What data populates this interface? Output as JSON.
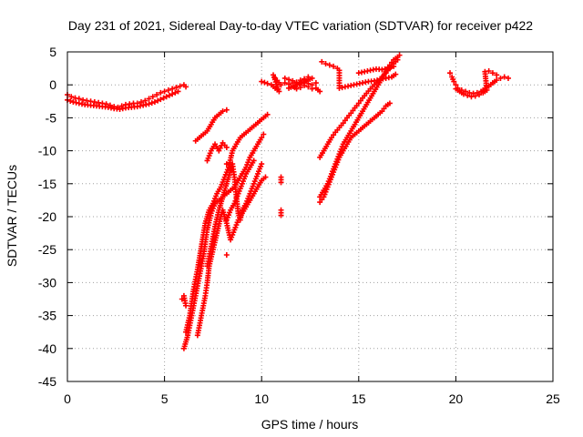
{
  "chart_data": {
    "type": "scatter",
    "title": "Day 231 of 2021, Sidereal Day-to-day VTEC variation (SDTVAR) for receiver p422",
    "xlabel": "GPS time / hours",
    "ylabel": "SDTVAR / TECUs",
    "xlim": [
      0,
      25
    ],
    "ylim": [
      -45,
      5
    ],
    "xticks": [
      0,
      5,
      10,
      15,
      20,
      25
    ],
    "yticks": [
      5,
      0,
      -5,
      -10,
      -15,
      -20,
      -25,
      -30,
      -35,
      -40,
      -45
    ],
    "grid": true,
    "marker": "+",
    "color": "#ff0000",
    "series": [
      {
        "points": [
          [
            0.0,
            -1.5
          ],
          [
            0.2,
            -1.8
          ],
          [
            0.4,
            -2.0
          ],
          [
            0.6,
            -2.1
          ],
          [
            0.8,
            -2.3
          ],
          [
            1.0,
            -2.4
          ],
          [
            1.2,
            -2.5
          ],
          [
            1.4,
            -2.6
          ],
          [
            1.6,
            -2.7
          ],
          [
            1.8,
            -2.8
          ],
          [
            2.0,
            -2.9
          ],
          [
            2.2,
            -3.1
          ],
          [
            2.4,
            -3.3
          ],
          [
            2.6,
            -3.4
          ],
          [
            2.8,
            -3.2
          ],
          [
            3.0,
            -3.0
          ],
          [
            3.2,
            -2.9
          ],
          [
            3.4,
            -2.8
          ],
          [
            3.6,
            -2.8
          ],
          [
            3.8,
            -2.6
          ],
          [
            4.0,
            -2.4
          ],
          [
            4.2,
            -2.1
          ],
          [
            4.4,
            -1.8
          ],
          [
            4.6,
            -1.5
          ],
          [
            4.8,
            -1.2
          ],
          [
            5.0,
            -1.0
          ],
          [
            5.2,
            -0.8
          ],
          [
            5.4,
            -0.6
          ],
          [
            5.6,
            -0.4
          ],
          [
            5.8,
            -0.2
          ],
          [
            6.0,
            0.0
          ],
          [
            6.1,
            -0.3
          ],
          [
            0.0,
            -2.3
          ],
          [
            0.3,
            -2.6
          ],
          [
            0.6,
            -2.8
          ],
          [
            0.9,
            -3.0
          ],
          [
            1.2,
            -3.1
          ],
          [
            1.5,
            -3.2
          ],
          [
            1.8,
            -3.3
          ],
          [
            2.1,
            -3.4
          ],
          [
            2.4,
            -3.6
          ],
          [
            2.7,
            -3.7
          ],
          [
            3.0,
            -3.5
          ],
          [
            3.3,
            -3.4
          ],
          [
            3.6,
            -3.3
          ],
          [
            3.9,
            -3.1
          ],
          [
            4.2,
            -2.9
          ],
          [
            4.5,
            -2.6
          ],
          [
            4.8,
            -2.2
          ],
          [
            5.1,
            -1.8
          ],
          [
            5.4,
            -1.4
          ],
          [
            5.7,
            -1.0
          ],
          [
            6.0,
            -40.0
          ],
          [
            6.2,
            -38.0
          ],
          [
            6.4,
            -35.0
          ],
          [
            6.6,
            -32.0
          ],
          [
            6.8,
            -29.0
          ],
          [
            7.0,
            -26.0
          ],
          [
            7.2,
            -22.0
          ],
          [
            7.4,
            -19.5
          ],
          [
            7.6,
            -18.0
          ],
          [
            7.8,
            -17.5
          ],
          [
            8.0,
            -17.0
          ],
          [
            8.2,
            -16.5
          ],
          [
            8.4,
            -16.0
          ],
          [
            8.6,
            -15.5
          ],
          [
            8.8,
            -14.5
          ],
          [
            9.0,
            -13.5
          ],
          [
            9.2,
            -12.5
          ],
          [
            9.4,
            -11.0
          ],
          [
            9.6,
            -10.0
          ],
          [
            9.8,
            -9.0
          ],
          [
            10.0,
            -8.0
          ],
          [
            10.1,
            -7.5
          ],
          [
            6.1,
            -37.5
          ],
          [
            6.3,
            -35.0
          ],
          [
            6.5,
            -31.0
          ],
          [
            6.7,
            -28.0
          ],
          [
            6.9,
            -24.5
          ],
          [
            7.1,
            -21.0
          ],
          [
            7.3,
            -19.0
          ],
          [
            7.5,
            -18.0
          ],
          [
            7.7,
            -16.5
          ],
          [
            7.9,
            -15.5
          ],
          [
            8.1,
            -14.0
          ],
          [
            8.3,
            -12.5
          ],
          [
            8.5,
            -10.0
          ],
          [
            8.7,
            -9.0
          ],
          [
            8.9,
            -8.0
          ],
          [
            9.1,
            -7.5
          ],
          [
            9.3,
            -7.0
          ],
          [
            9.5,
            -6.5
          ],
          [
            9.7,
            -6.0
          ],
          [
            9.9,
            -5.5
          ],
          [
            10.1,
            -5.0
          ],
          [
            10.3,
            -4.5
          ],
          [
            6.7,
            -38.0
          ],
          [
            6.9,
            -35.0
          ],
          [
            7.1,
            -32.0
          ],
          [
            7.2,
            -30.0
          ],
          [
            7.3,
            -27.5
          ],
          [
            7.5,
            -25.0
          ],
          [
            7.7,
            -22.5
          ],
          [
            7.9,
            -20.0
          ],
          [
            8.0,
            -19.0
          ],
          [
            8.2,
            -21.0
          ],
          [
            8.4,
            -23.5
          ],
          [
            8.6,
            -22.0
          ],
          [
            8.8,
            -20.5
          ],
          [
            9.0,
            -19.5
          ],
          [
            9.2,
            -18.5
          ],
          [
            9.4,
            -17.5
          ],
          [
            9.6,
            -16.5
          ],
          [
            9.8,
            -15.5
          ],
          [
            10.0,
            -14.5
          ],
          [
            10.2,
            -14.0
          ],
          [
            7.2,
            -27.5
          ],
          [
            7.4,
            -24.5
          ],
          [
            7.6,
            -21.5
          ],
          [
            7.8,
            -19.0
          ],
          [
            8.0,
            -17.0
          ],
          [
            8.2,
            -15.0
          ],
          [
            8.4,
            -13.0
          ],
          [
            8.5,
            -12.0
          ],
          [
            8.6,
            -14.0
          ],
          [
            8.7,
            -17.0
          ],
          [
            8.8,
            -19.5
          ],
          [
            8.9,
            -20.5
          ],
          [
            9.0,
            -19.0
          ],
          [
            9.2,
            -18.0
          ],
          [
            9.4,
            -16.5
          ],
          [
            9.6,
            -15.0
          ],
          [
            9.8,
            -13.5
          ],
          [
            10.0,
            -12.0
          ],
          [
            7.2,
            -11.5
          ],
          [
            7.4,
            -10.0
          ],
          [
            7.6,
            -9.0
          ],
          [
            7.8,
            -10.0
          ],
          [
            8.0,
            -8.8
          ],
          [
            8.2,
            -9.5
          ],
          [
            8.2,
            -20.5
          ],
          [
            8.4,
            -19.0
          ],
          [
            8.6,
            -18.0
          ],
          [
            8.8,
            -16.5
          ],
          [
            9.0,
            -15.0
          ],
          [
            9.2,
            -13.5
          ],
          [
            9.4,
            -12.5
          ],
          [
            9.6,
            -11.5
          ],
          [
            6.6,
            -8.5
          ],
          [
            6.8,
            -8.0
          ],
          [
            7.0,
            -7.5
          ],
          [
            7.2,
            -7.0
          ],
          [
            7.6,
            -5.0
          ],
          [
            7.8,
            -4.5
          ],
          [
            8.0,
            -4.0
          ],
          [
            8.2,
            -3.8
          ],
          [
            5.9,
            -32.5
          ],
          [
            6.0,
            -32.0
          ],
          [
            6.1,
            -33.5
          ],
          [
            8.2,
            -12.0
          ],
          [
            8.2,
            -25.8
          ],
          [
            8.8,
            -19.5
          ],
          [
            11.0,
            -14.0
          ],
          [
            11.0,
            -14.8
          ],
          [
            11.0,
            -19.0
          ],
          [
            11.0,
            -19.8
          ],
          [
            10.0,
            0.5
          ],
          [
            10.3,
            0.2
          ],
          [
            10.5,
            0.0
          ],
          [
            10.7,
            -0.5
          ],
          [
            10.9,
            -1.0
          ],
          [
            10.6,
            1.5
          ],
          [
            10.7,
            1.0
          ],
          [
            11.0,
            0.0
          ],
          [
            11.2,
            0.3
          ],
          [
            11.4,
            0.1
          ],
          [
            11.6,
            0.3
          ],
          [
            11.8,
            0.0
          ],
          [
            12.0,
            0.2
          ],
          [
            12.2,
            0.4
          ],
          [
            12.4,
            0.2
          ],
          [
            12.6,
            0.0
          ],
          [
            12.8,
            0.3
          ],
          [
            11.2,
            1.0
          ],
          [
            11.4,
            0.8
          ],
          [
            11.6,
            0.6
          ],
          [
            11.8,
            0.4
          ],
          [
            12.0,
            0.7
          ],
          [
            12.2,
            0.9
          ],
          [
            12.4,
            1.2
          ],
          [
            12.6,
            1.0
          ],
          [
            11.4,
            -0.5
          ],
          [
            11.6,
            -0.2
          ],
          [
            11.8,
            -0.6
          ],
          [
            12.0,
            -0.4
          ],
          [
            12.2,
            -0.1
          ],
          [
            12.4,
            -0.3
          ],
          [
            12.6,
            -0.6
          ],
          [
            12.8,
            -0.5
          ],
          [
            13.0,
            -1.0
          ],
          [
            13.1,
            3.5
          ],
          [
            13.3,
            3.2
          ],
          [
            13.5,
            3.0
          ],
          [
            13.7,
            2.8
          ],
          [
            13.9,
            2.5
          ],
          [
            14.0,
            2.2
          ],
          [
            14.0,
            -0.5
          ],
          [
            14.3,
            -0.3
          ],
          [
            14.6,
            -0.1
          ],
          [
            14.9,
            0.1
          ],
          [
            15.2,
            0.3
          ],
          [
            15.5,
            0.5
          ],
          [
            15.8,
            0.6
          ],
          [
            16.1,
            0.8
          ],
          [
            16.4,
            1.0
          ],
          [
            16.7,
            1.2
          ],
          [
            16.9,
            1.6
          ],
          [
            15.0,
            1.8
          ],
          [
            15.3,
            2.0
          ],
          [
            15.6,
            2.2
          ],
          [
            15.9,
            2.4
          ],
          [
            16.2,
            2.3
          ],
          [
            16.5,
            2.5
          ],
          [
            16.8,
            2.8
          ],
          [
            13.0,
            -17.0
          ],
          [
            13.2,
            -16.0
          ],
          [
            13.4,
            -15.0
          ],
          [
            13.6,
            -13.5
          ],
          [
            13.8,
            -12.0
          ],
          [
            14.0,
            -10.5
          ],
          [
            14.2,
            -9.0
          ],
          [
            14.4,
            -8.0
          ],
          [
            14.6,
            -7.0
          ],
          [
            14.8,
            -6.0
          ],
          [
            15.0,
            -5.0
          ],
          [
            15.2,
            -4.0
          ],
          [
            15.4,
            -3.0
          ],
          [
            15.6,
            -2.0
          ],
          [
            15.8,
            -1.0
          ],
          [
            16.0,
            0.0
          ],
          [
            16.2,
            1.0
          ],
          [
            16.4,
            2.0
          ],
          [
            16.6,
            3.0
          ],
          [
            16.8,
            3.8
          ],
          [
            17.0,
            4.2
          ],
          [
            17.1,
            4.5
          ],
          [
            13.0,
            -17.8
          ],
          [
            13.2,
            -17.0
          ],
          [
            13.4,
            -15.5
          ],
          [
            13.6,
            -14.0
          ],
          [
            13.8,
            -12.5
          ],
          [
            14.0,
            -11.0
          ],
          [
            14.2,
            -10.0
          ],
          [
            14.4,
            -9.0
          ],
          [
            14.6,
            -8.0
          ],
          [
            14.8,
            -7.5
          ],
          [
            15.0,
            -7.0
          ],
          [
            15.2,
            -6.5
          ],
          [
            15.4,
            -6.0
          ],
          [
            15.6,
            -5.5
          ],
          [
            15.8,
            -5.0
          ],
          [
            16.0,
            -4.5
          ],
          [
            16.2,
            -4.0
          ],
          [
            16.4,
            -3.2
          ],
          [
            16.6,
            -2.8
          ],
          [
            13.0,
            -11.0
          ],
          [
            13.2,
            -10.0
          ],
          [
            13.4,
            -9.0
          ],
          [
            13.6,
            -8.0
          ],
          [
            13.8,
            -7.2
          ],
          [
            14.0,
            -6.5
          ],
          [
            14.2,
            -5.8
          ],
          [
            14.4,
            -5.0
          ],
          [
            14.6,
            -4.3
          ],
          [
            14.8,
            -3.5
          ],
          [
            15.0,
            -2.8
          ],
          [
            15.2,
            -2.0
          ],
          [
            15.4,
            -1.3
          ],
          [
            15.6,
            -0.6
          ],
          [
            15.8,
            0.0
          ],
          [
            16.0,
            0.6
          ],
          [
            16.2,
            1.2
          ],
          [
            16.4,
            1.8
          ],
          [
            16.6,
            2.5
          ],
          [
            16.8,
            3.2
          ],
          [
            17.0,
            3.8
          ],
          [
            19.7,
            1.8
          ],
          [
            19.8,
            1.2
          ],
          [
            19.9,
            0.5
          ],
          [
            20.0,
            0.0
          ],
          [
            20.1,
            -0.5
          ],
          [
            20.3,
            -0.8
          ],
          [
            20.5,
            -1.0
          ],
          [
            20.7,
            -1.2
          ],
          [
            20.9,
            -1.3
          ],
          [
            21.1,
            -1.2
          ],
          [
            21.3,
            -1.0
          ],
          [
            21.5,
            -0.6
          ],
          [
            21.7,
            -0.2
          ],
          [
            21.9,
            0.3
          ],
          [
            22.1,
            0.7
          ],
          [
            22.3,
            1.0
          ],
          [
            22.5,
            1.2
          ],
          [
            22.7,
            1.0
          ],
          [
            20.0,
            -0.6
          ],
          [
            20.2,
            -1.0
          ],
          [
            20.4,
            -1.4
          ],
          [
            20.6,
            -1.6
          ],
          [
            20.8,
            -1.8
          ],
          [
            21.0,
            -1.7
          ],
          [
            21.2,
            -1.5
          ],
          [
            21.4,
            -1.2
          ],
          [
            21.6,
            -0.8
          ],
          [
            21.5,
            2.0
          ],
          [
            21.7,
            2.1
          ],
          [
            21.9,
            1.8
          ],
          [
            22.1,
            1.5
          ]
        ]
      }
    ]
  }
}
